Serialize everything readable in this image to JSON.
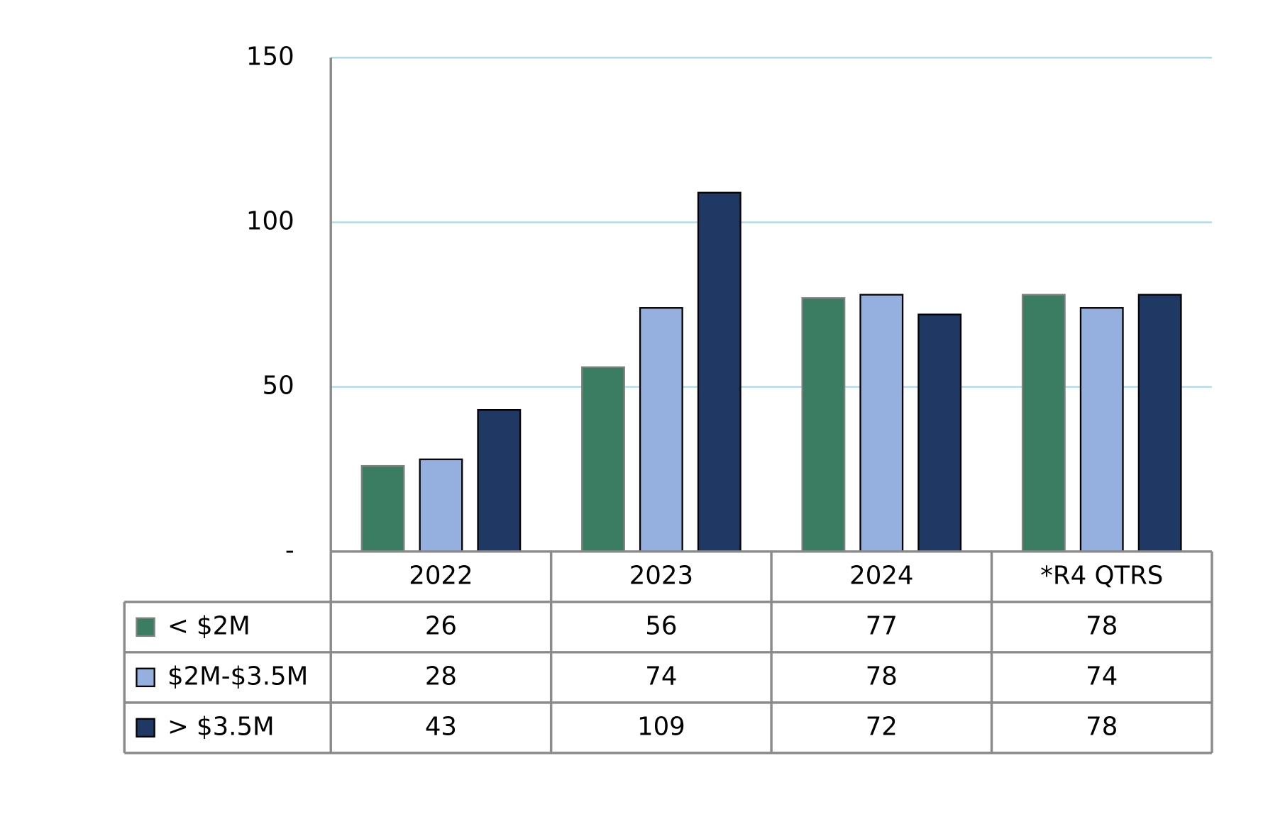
{
  "chart_data": {
    "type": "bar",
    "categories": [
      "2022",
      "2023",
      "2024",
      "*R4 QTRS"
    ],
    "series": [
      {
        "name": "< $2M",
        "color": "#3a7d62",
        "values": [
          26,
          56,
          77,
          78
        ]
      },
      {
        "name": "$2M-$3.5M",
        "color": "#95b0df",
        "values": [
          28,
          74,
          78,
          74
        ]
      },
      {
        "name": "> $3.5M",
        "color": "#203864",
        "values": [
          43,
          109,
          72,
          78
        ]
      }
    ],
    "ylim": [
      0,
      150
    ],
    "yticks": [
      {
        "value": 0,
        "label": "-"
      },
      50,
      100,
      150
    ],
    "grid": true
  }
}
